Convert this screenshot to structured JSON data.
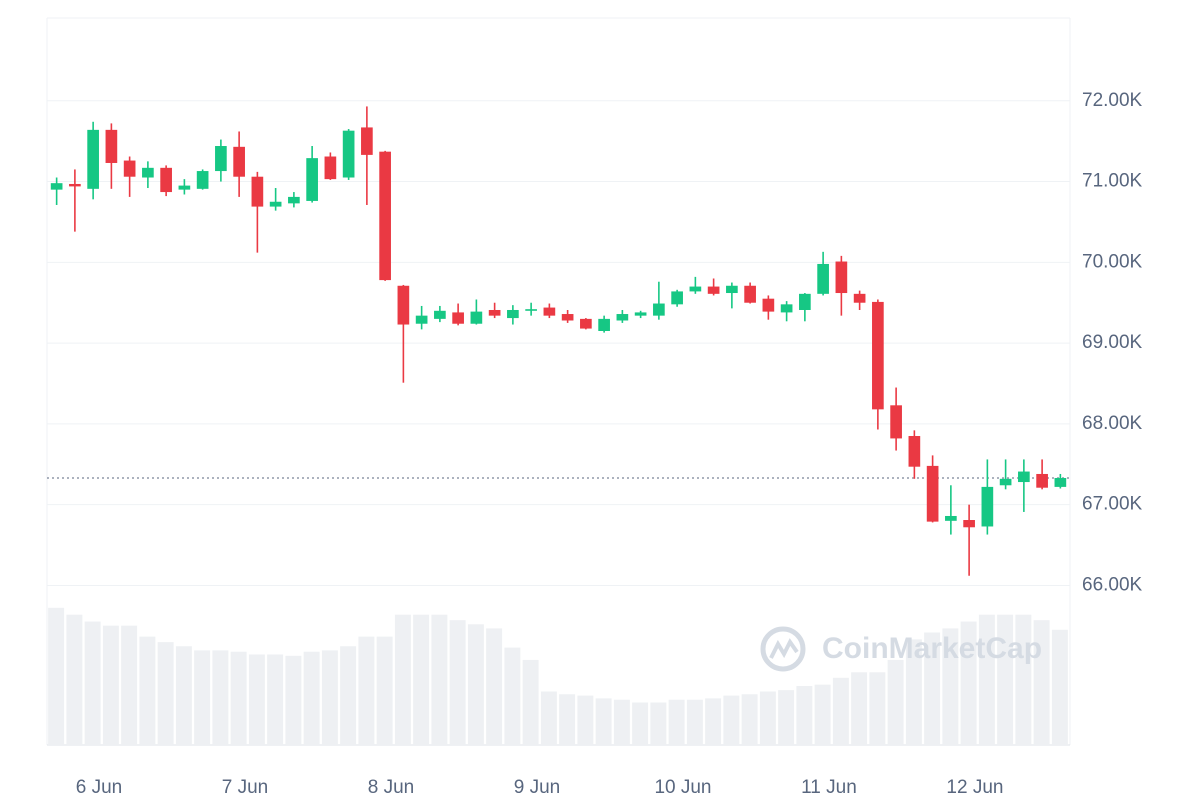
{
  "chart_data": {
    "type": "candlestick",
    "watermark": "CoinMarketCap",
    "up_color": "#16c784",
    "down_color": "#ea3943",
    "volume_color": "#eef0f3",
    "grid": true,
    "xlim": [
      -0.356,
      6.651
    ],
    "xticks": [
      {
        "value": 0,
        "label": "6 Jun"
      },
      {
        "value": 1,
        "label": "7 Jun"
      },
      {
        "value": 2,
        "label": "8 Jun"
      },
      {
        "value": 3,
        "label": "9 Jun"
      },
      {
        "value": 4,
        "label": "10 Jun"
      },
      {
        "value": 5,
        "label": "11 Jun"
      },
      {
        "value": 6,
        "label": "12 Jun"
      }
    ],
    "ylim": [
      64000,
      73000
    ],
    "yticks": [
      {
        "value": 66000,
        "label": "66.00K"
      },
      {
        "value": 67000,
        "label": "67.00K"
      },
      {
        "value": 68000,
        "label": "68.00K"
      },
      {
        "value": 69000,
        "label": "69.00K"
      },
      {
        "value": 70000,
        "label": "70.00K"
      },
      {
        "value": 71000,
        "label": "71.00K"
      },
      {
        "value": 72000,
        "label": "72.00K"
      }
    ],
    "price_line": 67330,
    "vlim": [
      0,
      530
    ],
    "x": [
      -0.29,
      -0.165,
      -0.04,
      0.085,
      0.21,
      0.335,
      0.46,
      0.585,
      0.71,
      0.835,
      0.96,
      1.085,
      1.21,
      1.335,
      1.46,
      1.585,
      1.71,
      1.835,
      1.96,
      2.085,
      2.21,
      2.335,
      2.46,
      2.585,
      2.71,
      2.835,
      2.96,
      3.085,
      3.21,
      3.335,
      3.46,
      3.585,
      3.71,
      3.835,
      3.96,
      4.085,
      4.21,
      4.335,
      4.46,
      4.585,
      4.71,
      4.835,
      4.96,
      5.085,
      5.21,
      5.335,
      5.46,
      5.585,
      5.71,
      5.835,
      5.96,
      6.085,
      6.21,
      6.335,
      6.46,
      6.585
    ],
    "open": [
      70900,
      70970,
      70910,
      71640,
      71260,
      71050,
      71170,
      70900,
      70910,
      71130,
      71430,
      71060,
      70690,
      70730,
      70760,
      71310,
      71050,
      71670,
      71370,
      69710,
      69240,
      69300,
      69380,
      69240,
      69410,
      69310,
      69400,
      69440,
      69360,
      69300,
      69150,
      69280,
      69340,
      69340,
      69480,
      69640,
      69700,
      69620,
      69710,
      69550,
      69380,
      69410,
      69610,
      70010,
      69610,
      69510,
      68230,
      67850,
      67480,
      66800,
      66810,
      66730,
      67240,
      67280,
      67380,
      67220
    ],
    "high": [
      71050,
      71150,
      71740,
      71720,
      71310,
      71250,
      71200,
      71030,
      71150,
      71520,
      71620,
      71120,
      70920,
      70870,
      71440,
      71360,
      71650,
      71930,
      71380,
      69720,
      69460,
      69460,
      69490,
      69540,
      69500,
      69470,
      69500,
      69490,
      69410,
      69310,
      69340,
      69410,
      69400,
      69760,
      69660,
      69820,
      69800,
      69750,
      69750,
      69590,
      69520,
      69620,
      70130,
      70080,
      69650,
      69540,
      68450,
      67920,
      67610,
      67240,
      67000,
      67560,
      67560,
      67560,
      67560,
      67380
    ],
    "low": [
      70710,
      70380,
      70780,
      70910,
      70810,
      70920,
      70820,
      70840,
      70900,
      71000,
      70810,
      70120,
      70640,
      70680,
      70740,
      71020,
      71020,
      70710,
      69770,
      68510,
      69170,
      69260,
      69220,
      69230,
      69310,
      69230,
      69340,
      69310,
      69250,
      69170,
      69130,
      69250,
      69310,
      69290,
      69450,
      69610,
      69590,
      69430,
      69490,
      69290,
      69270,
      69270,
      69590,
      69340,
      69410,
      67930,
      67670,
      67320,
      66780,
      66630,
      66120,
      66630,
      67190,
      66910,
      67190,
      67200
    ],
    "close": [
      70980,
      70940,
      71640,
      71230,
      71060,
      71170,
      70870,
      70950,
      71130,
      71440,
      71060,
      70690,
      70750,
      70810,
      71290,
      71030,
      71630,
      71330,
      69780,
      69230,
      69340,
      69400,
      69240,
      69390,
      69340,
      69410,
      69420,
      69340,
      69280,
      69180,
      69300,
      69360,
      69380,
      69490,
      69640,
      69700,
      69610,
      69710,
      69500,
      69390,
      69480,
      69610,
      69980,
      69620,
      69500,
      68180,
      67820,
      67470,
      66790,
      66860,
      66720,
      67220,
      67320,
      67410,
      67210,
      67330
    ],
    "volume": [
      100,
      95,
      90,
      87,
      87,
      79,
      75,
      72,
      69,
      69,
      68,
      66,
      66,
      65,
      68,
      69,
      72,
      79,
      79,
      95,
      95,
      95,
      91,
      88,
      85,
      71,
      62,
      39,
      37,
      36,
      34,
      33,
      31,
      31,
      33,
      33,
      34,
      36,
      37,
      39,
      40,
      43,
      44,
      49,
      53,
      53,
      62,
      77,
      82,
      85,
      90,
      95,
      95,
      95,
      91,
      84
    ]
  }
}
